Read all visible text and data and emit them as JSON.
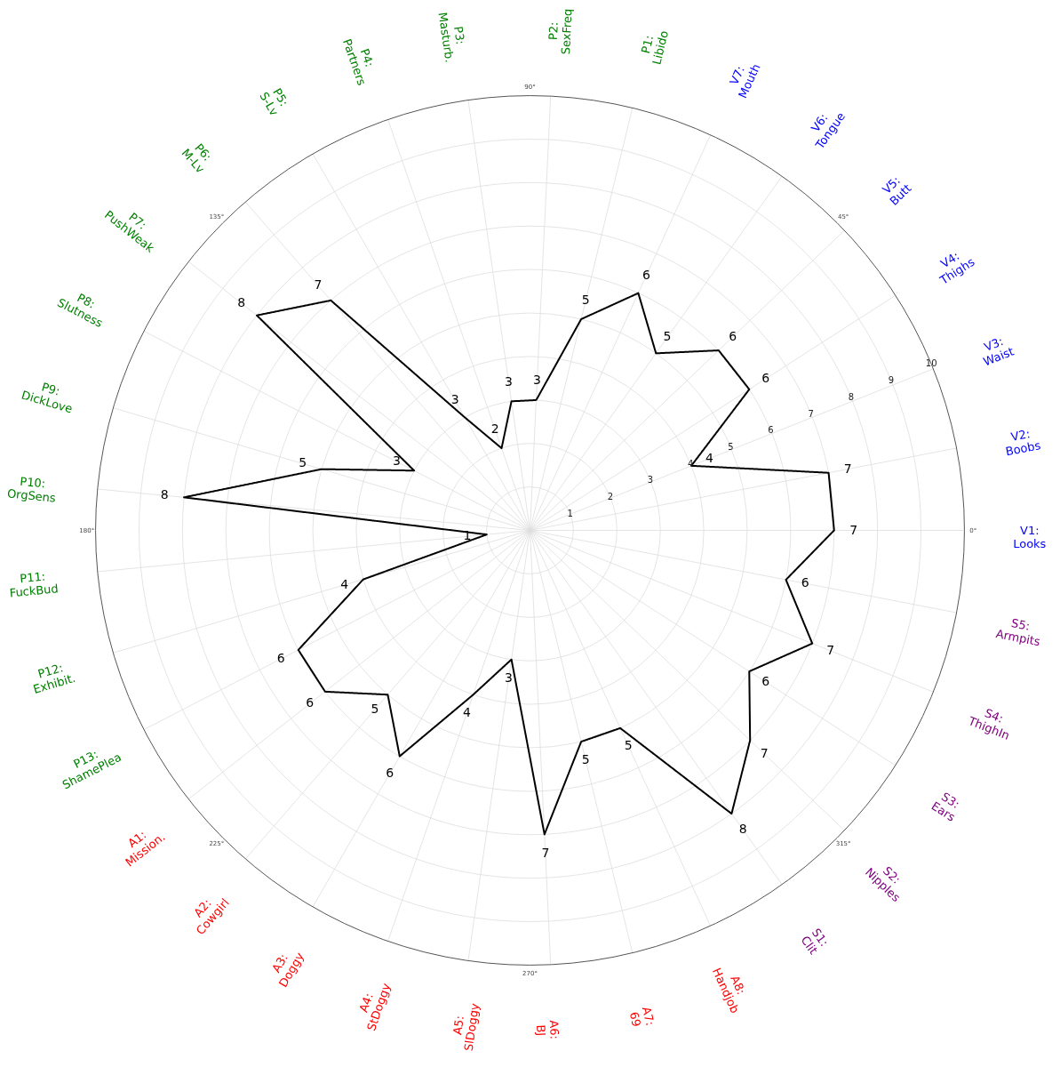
{
  "chart_data": {
    "type": "radar",
    "categories": [
      "P2:\nSexFreq",
      "P1:\nLibido",
      "V7:\nMouth",
      "V6:\nTongue",
      "V5:\nButt",
      "V4:\nThighs",
      "V3:\nWaist",
      "V2:\nBoobs",
      "V1:\nLooks",
      "S5:\nArmpits",
      "S4:\nThighIn",
      "S3:\nEars",
      "S2:\nNipples",
      "S1:\nClit",
      "A8:\nHandjob",
      "A7:\n69",
      "A6:\nBJ",
      "A5:\nSlDoggy",
      "A4:\nStDoggy",
      "A3:\nDoggy",
      "A2:\nCowgirl",
      "A1:\nMission.",
      "P13:\nShamePlea",
      "P12:\nExhibit.",
      "P11:\nFuckBud",
      "P10:\nOrgSens",
      "P9:\nDickLove",
      "P8:\nSlutness",
      "P7:\nPushWeak",
      "P6:\nM-Lv",
      "P5:\nS-Lv",
      "P4:\nPartners",
      "P3:\nMasturb."
    ],
    "colors": [
      "#008000",
      "#008000",
      "#0000ff",
      "#0000ff",
      "#0000ff",
      "#0000ff",
      "#0000ff",
      "#0000ff",
      "#0000ff",
      "#800080",
      "#800080",
      "#800080",
      "#800080",
      "#800080",
      "#ff0000",
      "#ff0000",
      "#ff0000",
      "#ff0000",
      "#ff0000",
      "#ff0000",
      "#ff0000",
      "#ff0000",
      "#008000",
      "#008000",
      "#008000",
      "#008000",
      "#008000",
      "#008000",
      "#008000",
      "#008000",
      "#008000",
      "#008000",
      "#008000"
    ],
    "series": [
      {
        "color": "#000000",
        "values": [
          3,
          5,
          6,
          5,
          6,
          6,
          4,
          7,
          7,
          6,
          7,
          6,
          7,
          8,
          5,
          5,
          7,
          3,
          4,
          6,
          5,
          6,
          6,
          4,
          1,
          8,
          5,
          3,
          8,
          7,
          3,
          2,
          3
        ]
      }
    ],
    "ylim": [
      0,
      10
    ],
    "yticks": [
      1,
      2,
      3,
      4,
      5,
      6,
      7,
      8,
      9,
      10
    ],
    "annotations": [
      "0°",
      "45°",
      "90°",
      "135°",
      "180°",
      "225°",
      "270°",
      "315°"
    ],
    "grid": true,
    "data_labels": true,
    "line_style": "solid"
  }
}
